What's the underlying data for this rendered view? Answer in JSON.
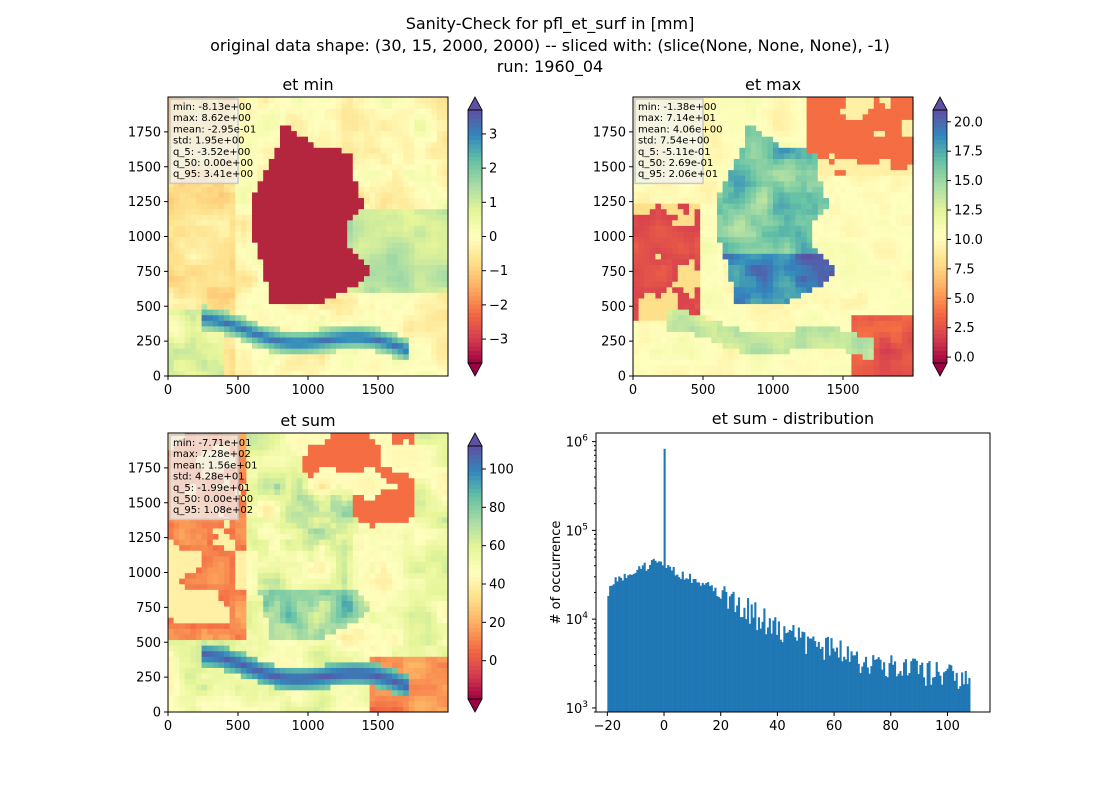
{
  "figure": {
    "title_lines": [
      "Sanity-Check for pfl_et_surf in [mm]",
      "original data shape: (30, 15, 2000, 2000) -- sliced with: (slice(None, None, None), -1)",
      "run: 1960_04"
    ]
  },
  "colors": {
    "spectral": [
      "#9e0142",
      "#d53e4f",
      "#f46d43",
      "#fdae61",
      "#fee08b",
      "#ffffbf",
      "#e6f598",
      "#abdda4",
      "#66c2a5",
      "#3288bd",
      "#5e4fa2"
    ],
    "germany_min": "#b3263e",
    "histogram_bar": "#1f77b4",
    "stats_box_bg": "#f2f2f2",
    "stats_box_border": "#c8c8c8"
  },
  "chart_data": [
    {
      "type": "heatmap",
      "title": "et min",
      "xlim": [
        0,
        2000
      ],
      "ylim": [
        0,
        2000
      ],
      "x_ticks": [
        "0",
        "500",
        "1000",
        "1500"
      ],
      "y_ticks": [
        "0",
        "250",
        "500",
        "750",
        "1000",
        "1250",
        "1500",
        "1750"
      ],
      "x_tick_values": [
        0,
        500,
        1000,
        1500
      ],
      "y_tick_values": [
        0,
        250,
        500,
        750,
        1000,
        1250,
        1500,
        1750
      ],
      "colorbar": {
        "min": -3.7,
        "max": 3.7,
        "ticks": [
          "3",
          "2",
          "1",
          "0",
          "−1",
          "−2",
          "−3"
        ],
        "tick_values": [
          3,
          2,
          1,
          0,
          -1,
          -2,
          -3
        ],
        "extend": "both"
      },
      "stats": [
        "min: -8.13e+00",
        "max: 8.62e+00",
        "mean: -2.95e-01",
        "std: 1.95e+00",
        "q_5: -3.52e+00",
        "q_50: 0.00e+00",
        "q_95: 3.41e+00"
      ],
      "summary": {
        "min": -8.13,
        "max": 8.62,
        "mean": -0.295,
        "std": 1.95,
        "q_5": -3.52,
        "q_50": 0.0,
        "q_95": 3.41
      }
    },
    {
      "type": "heatmap",
      "title": "et max",
      "xlim": [
        0,
        2000
      ],
      "ylim": [
        0,
        2000
      ],
      "x_ticks": [
        "0",
        "500",
        "1000",
        "1500"
      ],
      "y_ticks": [
        "0",
        "250",
        "500",
        "750",
        "1000",
        "1250",
        "1500",
        "1750"
      ],
      "x_tick_values": [
        0,
        500,
        1000,
        1500
      ],
      "y_tick_values": [
        0,
        250,
        500,
        750,
        1000,
        1250,
        1500,
        1750
      ],
      "colorbar": {
        "min": -0.5,
        "max": 21.0,
        "ticks": [
          "20.0",
          "17.5",
          "15.0",
          "12.5",
          "10.0",
          "7.5",
          "5.0",
          "2.5",
          "0.0"
        ],
        "tick_values": [
          20.0,
          17.5,
          15.0,
          12.5,
          10.0,
          7.5,
          5.0,
          2.5,
          0.0
        ],
        "extend": "both"
      },
      "stats": [
        "min: -1.38e+00",
        "max: 7.14e+01",
        "mean: 4.06e+00",
        "std: 7.54e+00",
        "q_5: -5.11e-01",
        "q_50: 2.69e-01",
        "q_95: 2.06e+01"
      ],
      "summary": {
        "min": -1.38,
        "max": 71.4,
        "mean": 4.06,
        "std": 7.54,
        "q_5": -0.511,
        "q_50": 0.269,
        "q_95": 20.6
      }
    },
    {
      "type": "heatmap",
      "title": "et sum",
      "xlim": [
        0,
        2000
      ],
      "ylim": [
        0,
        2000
      ],
      "x_ticks": [
        "0",
        "500",
        "1000",
        "1500"
      ],
      "y_ticks": [
        "0",
        "250",
        "500",
        "750",
        "1000",
        "1250",
        "1500",
        "1750"
      ],
      "x_tick_values": [
        0,
        500,
        1000,
        1500
      ],
      "y_tick_values": [
        0,
        250,
        500,
        750,
        1000,
        1250,
        1500,
        1750
      ],
      "colorbar": {
        "min": -20,
        "max": 112,
        "ticks": [
          "100",
          "80",
          "60",
          "40",
          "20",
          "0"
        ],
        "tick_values": [
          100,
          80,
          60,
          40,
          20,
          0
        ],
        "extend": "both"
      },
      "stats": [
        "min: -7.71e+01",
        "max: 7.28e+02",
        "mean: 1.56e+01",
        "std: 4.28e+01",
        "q_5: -1.99e+01",
        "q_50: 0.00e+00",
        "q_95: 1.08e+02"
      ],
      "summary": {
        "min": -77.1,
        "max": 728,
        "mean": 15.6,
        "std": 42.8,
        "q_5": -19.9,
        "q_50": 0.0,
        "q_95": 108
      }
    },
    {
      "type": "bar",
      "title": "et sum - distribution",
      "ylabel": "# of occurrence",
      "xlabel": "",
      "yscale": "log",
      "xlim": [
        -24,
        115
      ],
      "ylim": [
        900,
        1250000
      ],
      "x_ticks": [
        "−20",
        "0",
        "20",
        "40",
        "60",
        "80",
        "100"
      ],
      "x_tick_values": [
        -20,
        0,
        20,
        40,
        60,
        80,
        100
      ],
      "y_ticks": [
        {
          "base": "10",
          "exp": "3",
          "value": 1000
        },
        {
          "base": "10",
          "exp": "4",
          "value": 10000
        },
        {
          "base": "10",
          "exp": "5",
          "value": 100000
        },
        {
          "base": "10",
          "exp": "6",
          "value": 1000000
        }
      ],
      "bin_range": [
        -20,
        108
      ],
      "bin_count": 200,
      "counts_anchors": [
        [
          -20,
          20000
        ],
        [
          -17,
          27000
        ],
        [
          -10,
          35000
        ],
        [
          -3,
          45000
        ],
        [
          -0.5,
          40000
        ],
        [
          0,
          830000
        ],
        [
          0.5,
          38000
        ],
        [
          3,
          35000
        ],
        [
          8,
          30000
        ],
        [
          15,
          24000
        ],
        [
          20,
          19000
        ],
        [
          30,
          13000
        ],
        [
          40,
          8500
        ],
        [
          50,
          6000
        ],
        [
          60,
          4500
        ],
        [
          70,
          3600
        ],
        [
          80,
          3000
        ],
        [
          90,
          2800
        ],
        [
          100,
          2500
        ],
        [
          108,
          2300
        ]
      ]
    }
  ]
}
